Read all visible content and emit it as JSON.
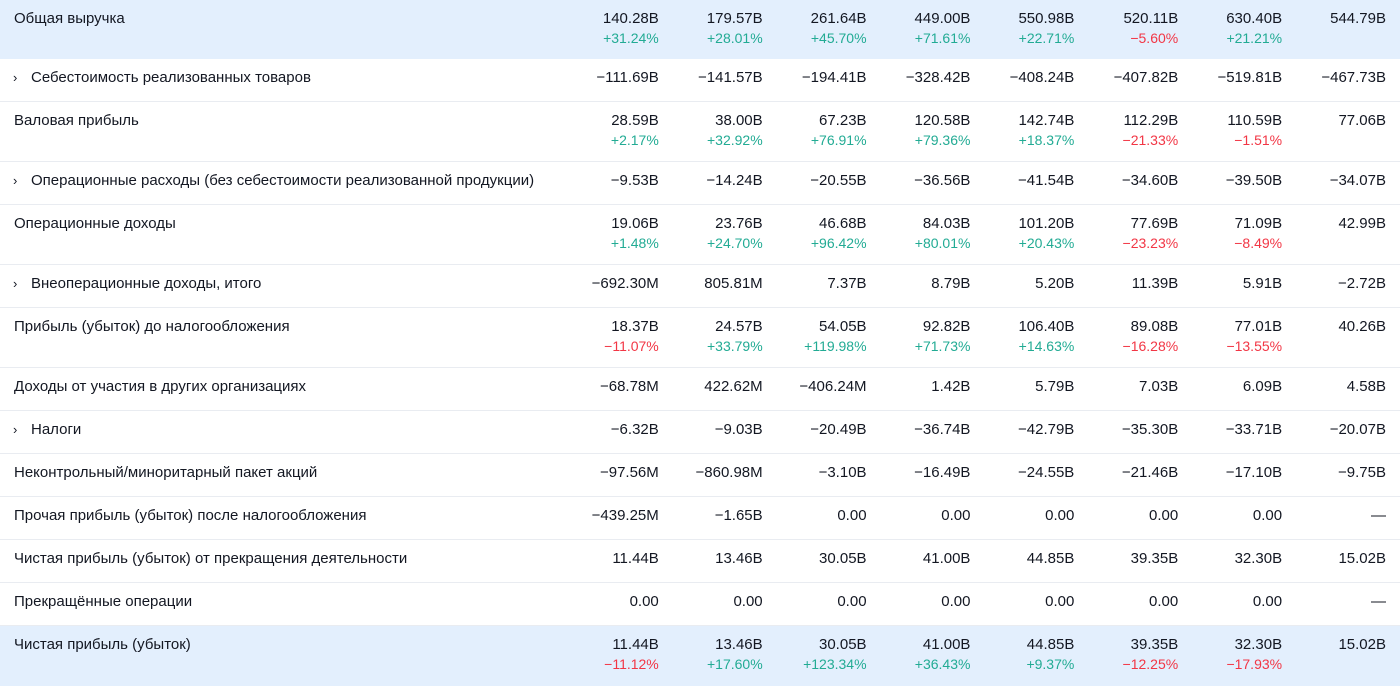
{
  "colors": {
    "positive": "#22ab94",
    "negative": "#f23645",
    "highlight_bg": "#e3effd"
  },
  "rows": [
    {
      "label": "Общая выручка",
      "expandable": false,
      "highlight": true,
      "values": [
        "140.28B",
        "179.57B",
        "261.64B",
        "449.00B",
        "550.98B",
        "520.11B",
        "630.40B",
        "544.79B"
      ],
      "changes": [
        "+31.24%",
        "+28.01%",
        "+45.70%",
        "+71.61%",
        "+22.71%",
        "−5.60%",
        "+21.21%",
        ""
      ]
    },
    {
      "label": "Себестоимость реализованных товаров",
      "expandable": true,
      "highlight": false,
      "values": [
        "−111.69B",
        "−141.57B",
        "−194.41B",
        "−328.42B",
        "−408.24B",
        "−407.82B",
        "−519.81B",
        "−467.73B"
      ],
      "changes": null
    },
    {
      "label": "Валовая прибыль",
      "expandable": false,
      "highlight": false,
      "values": [
        "28.59B",
        "38.00B",
        "67.23B",
        "120.58B",
        "142.74B",
        "112.29B",
        "110.59B",
        "77.06B"
      ],
      "changes": [
        "+2.17%",
        "+32.92%",
        "+76.91%",
        "+79.36%",
        "+18.37%",
        "−21.33%",
        "−1.51%",
        ""
      ]
    },
    {
      "label": "Операционные расходы (без себестоимости реализованной продукции)",
      "expandable": true,
      "highlight": false,
      "values": [
        "−9.53B",
        "−14.24B",
        "−20.55B",
        "−36.56B",
        "−41.54B",
        "−34.60B",
        "−39.50B",
        "−34.07B"
      ],
      "changes": null
    },
    {
      "label": "Операционные доходы",
      "expandable": false,
      "highlight": false,
      "values": [
        "19.06B",
        "23.76B",
        "46.68B",
        "84.03B",
        "101.20B",
        "77.69B",
        "71.09B",
        "42.99B"
      ],
      "changes": [
        "+1.48%",
        "+24.70%",
        "+96.42%",
        "+80.01%",
        "+20.43%",
        "−23.23%",
        "−8.49%",
        ""
      ]
    },
    {
      "label": "Внеоперационные доходы, итого",
      "expandable": true,
      "highlight": false,
      "values": [
        "−692.30M",
        "805.81M",
        "7.37B",
        "8.79B",
        "5.20B",
        "11.39B",
        "5.91B",
        "−2.72B"
      ],
      "changes": null
    },
    {
      "label": "Прибыль (убыток) до налогообложения",
      "expandable": false,
      "highlight": false,
      "values": [
        "18.37B",
        "24.57B",
        "54.05B",
        "92.82B",
        "106.40B",
        "89.08B",
        "77.01B",
        "40.26B"
      ],
      "changes": [
        "−11.07%",
        "+33.79%",
        "+119.98%",
        "+71.73%",
        "+14.63%",
        "−16.28%",
        "−13.55%",
        ""
      ]
    },
    {
      "label": "Доходы от участия в других организациях",
      "expandable": false,
      "highlight": false,
      "values": [
        "−68.78M",
        "422.62M",
        "−406.24M",
        "1.42B",
        "5.79B",
        "7.03B",
        "6.09B",
        "4.58B"
      ],
      "changes": null
    },
    {
      "label": "Налоги",
      "expandable": true,
      "highlight": false,
      "values": [
        "−6.32B",
        "−9.03B",
        "−20.49B",
        "−36.74B",
        "−42.79B",
        "−35.30B",
        "−33.71B",
        "−20.07B"
      ],
      "changes": null
    },
    {
      "label": "Неконтрольный/миноритарный пакет акций",
      "expandable": false,
      "highlight": false,
      "values": [
        "−97.56M",
        "−860.98M",
        "−3.10B",
        "−16.49B",
        "−24.55B",
        "−21.46B",
        "−17.10B",
        "−9.75B"
      ],
      "changes": null
    },
    {
      "label": "Прочая прибыль (убыток) после налогообложения",
      "expandable": false,
      "highlight": false,
      "values": [
        "−439.25M",
        "−1.65B",
        "0.00",
        "0.00",
        "0.00",
        "0.00",
        "0.00",
        "—"
      ],
      "changes": null
    },
    {
      "label": "Чистая прибыль (убыток) от прекращения деятельности",
      "expandable": false,
      "highlight": false,
      "values": [
        "11.44B",
        "13.46B",
        "30.05B",
        "41.00B",
        "44.85B",
        "39.35B",
        "32.30B",
        "15.02B"
      ],
      "changes": null
    },
    {
      "label": "Прекращённые операции",
      "expandable": false,
      "highlight": false,
      "values": [
        "0.00",
        "0.00",
        "0.00",
        "0.00",
        "0.00",
        "0.00",
        "0.00",
        "—"
      ],
      "changes": null
    },
    {
      "label": "Чистая прибыль (убыток)",
      "expandable": false,
      "highlight": true,
      "values": [
        "11.44B",
        "13.46B",
        "30.05B",
        "41.00B",
        "44.85B",
        "39.35B",
        "32.30B",
        "15.02B"
      ],
      "changes": [
        "−11.12%",
        "+17.60%",
        "+123.34%",
        "+36.43%",
        "+9.37%",
        "−12.25%",
        "−17.93%",
        ""
      ]
    }
  ]
}
